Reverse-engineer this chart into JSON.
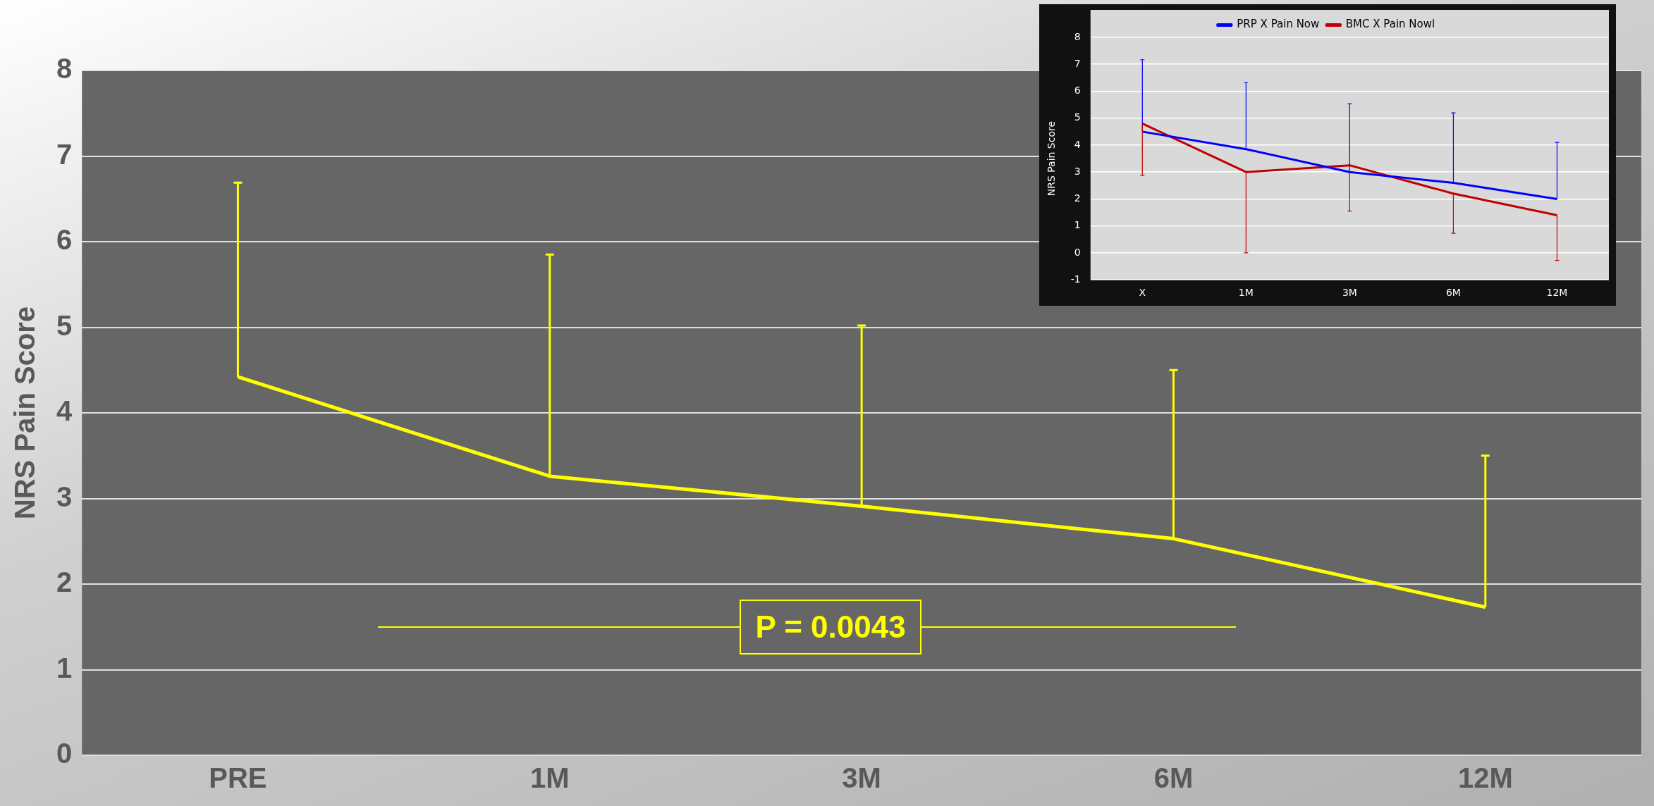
{
  "chart_data": [
    {
      "type": "line",
      "ylabel": "NRS Pain Score",
      "categories": [
        "PRE",
        "1M",
        "3M",
        "6M",
        "12M"
      ],
      "series": [
        {
          "color": "#ffff00",
          "values": [
            4.42,
            3.26,
            2.91,
            2.53,
            1.73
          ],
          "errors": [
            [
              4.42,
              6.69
            ],
            [
              3.26,
              5.85
            ],
            [
              2.91,
              5.02
            ],
            [
              2.53,
              4.5
            ],
            [
              1.73,
              3.5
            ]
          ]
        }
      ],
      "ylim": [
        0,
        8
      ],
      "yticks": [
        0,
        1,
        2,
        3,
        4,
        5,
        6,
        7,
        8
      ],
      "grid": "y",
      "marker": "none",
      "annotations": [
        "P = 0.0043"
      ]
    },
    {
      "type": "line",
      "ylabel": "NRS Pain Score",
      "categories": [
        "X",
        "1M",
        "3M",
        "6M",
        "12M"
      ],
      "series": [
        {
          "name": "PRP X Pain Now",
          "color": "#0000ff",
          "values": [
            4.5,
            3.85,
            3.0,
            2.6,
            2.0
          ],
          "errors": [
            [
              4.5,
              7.17
            ],
            [
              3.85,
              6.32
            ],
            [
              3.0,
              5.53
            ],
            [
              2.6,
              5.2
            ],
            [
              2.0,
              4.1
            ]
          ]
        },
        {
          "name": "BMC X Pain Nowl",
          "color": "#c00000",
          "values": [
            4.8,
            3.0,
            3.25,
            2.2,
            1.4
          ],
          "errors": [
            [
              2.88,
              4.8
            ],
            [
              0.0,
              3.0
            ],
            [
              1.55,
              3.25
            ],
            [
              0.73,
              2.2
            ],
            [
              -0.28,
              1.4
            ]
          ]
        }
      ],
      "ylim": [
        -1,
        8
      ],
      "yticks": [
        -1,
        0,
        1,
        2,
        3,
        4,
        5,
        6,
        7,
        8
      ],
      "grid": "y",
      "legend": "top",
      "marker": "none"
    }
  ]
}
